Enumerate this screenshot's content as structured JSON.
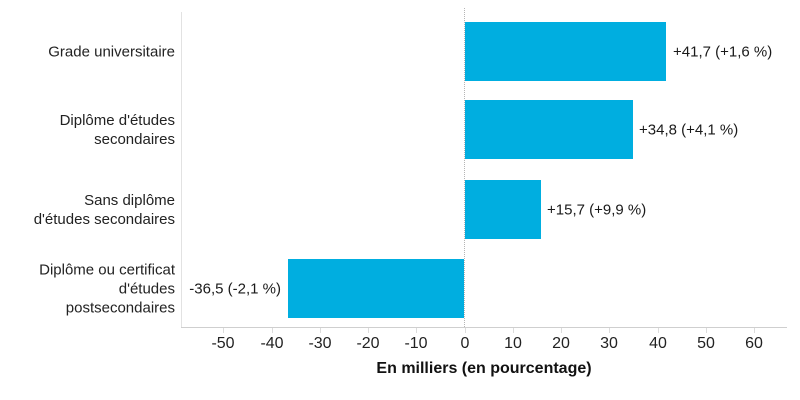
{
  "chart_data": {
    "type": "bar",
    "orientation": "horizontal",
    "xlabel": "En milliers (en pourcentage)",
    "categories": [
      {
        "label": "Grade universitaire",
        "lines": [
          "Grade universitaire"
        ]
      },
      {
        "label": "Diplôme d'études secondaires",
        "lines": [
          "Diplôme d'études",
          "secondaires"
        ]
      },
      {
        "label": "Sans diplôme d'études secondaires",
        "lines": [
          "Sans diplôme",
          "d'études secondaires"
        ]
      },
      {
        "label": "Diplôme ou certificat d'études postsecondaires",
        "lines": [
          "Diplôme ou certificat",
          "d'études",
          "postsecondaires"
        ]
      }
    ],
    "values": [
      41.7,
      34.8,
      15.7,
      -36.5
    ],
    "value_labels": [
      "+41,7 (+1,6 %)",
      "+34,8 (+4,1 %)",
      "+15,7 (+9,9 %)",
      "-36,5 (-2,1 %)"
    ],
    "percent_changes": [
      1.6,
      4.1,
      9.9,
      -2.1
    ],
    "x_ticks": [
      -50,
      -40,
      -30,
      -20,
      -10,
      0,
      10,
      20,
      30,
      40,
      50,
      60
    ],
    "x_tick_labels": [
      "-50",
      "-40",
      "-30",
      "-20",
      "-10",
      "0",
      "10",
      "20",
      "30",
      "40",
      "50",
      "60"
    ],
    "xlim": [
      -58.8,
      66.8
    ],
    "grid": false,
    "zero_line": true,
    "legend": false,
    "colors": {
      "bar": "#00AEE0",
      "text": "#222222",
      "axis_line": "#cfcfcf",
      "zero_line": "#b5b5b5",
      "background": "#ffffff"
    }
  }
}
